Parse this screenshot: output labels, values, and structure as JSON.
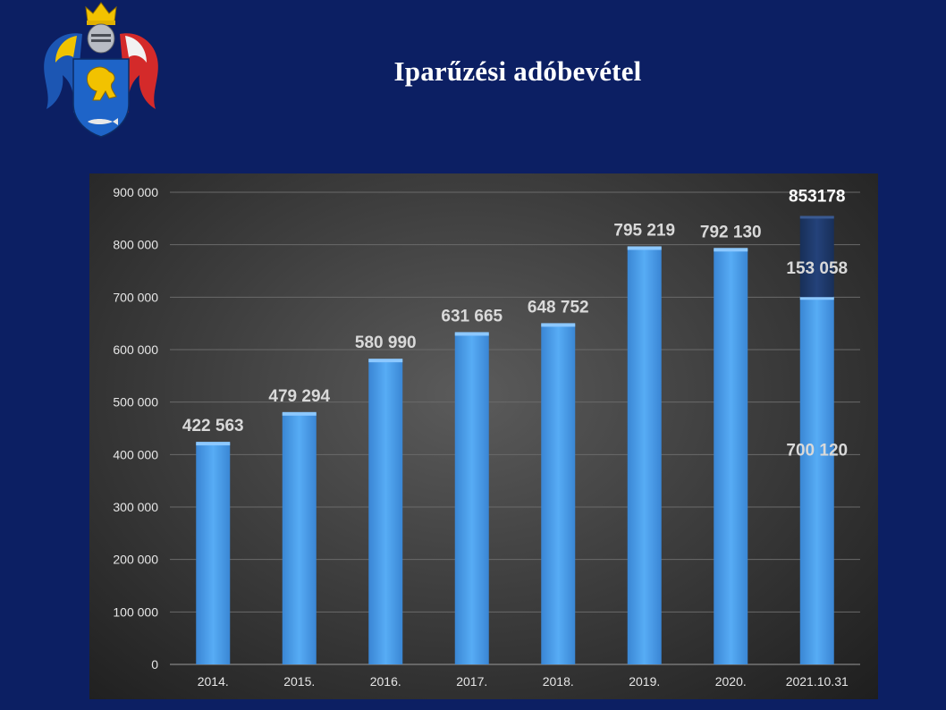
{
  "slide": {
    "title": "Iparűzési adóbevétel",
    "background_color": "#0c1f63"
  },
  "crest": {
    "icon": "coat-of-arms-icon"
  },
  "chart_data": {
    "type": "bar",
    "title": "Iparűzési adóbevétel",
    "categories": [
      "2014.",
      "2015.",
      "2016.",
      "2017.",
      "2018.",
      "2019.",
      "2020.",
      "2021.10.31"
    ],
    "series": [
      {
        "name": "base",
        "color": "#4a9eea",
        "values": [
          422563,
          479294,
          580990,
          631665,
          648752,
          795219,
          792130,
          700120
        ],
        "labels": [
          "422 563",
          "479 294",
          "580 990",
          "631 665",
          "648 752",
          "795 219",
          "792 130",
          "700 120"
        ]
      },
      {
        "name": "extra",
        "color": "#1f3a6a",
        "values": [
          null,
          null,
          null,
          null,
          null,
          null,
          null,
          153058
        ],
        "labels": [
          "",
          "",
          "",
          "",
          "",
          "",
          "",
          "153 058"
        ]
      }
    ],
    "total_label": {
      "category": "2021.10.31",
      "value": 853178,
      "text": "853178"
    },
    "y_ticks": [
      0,
      100000,
      200000,
      300000,
      400000,
      500000,
      600000,
      700000,
      800000,
      900000
    ],
    "y_tick_labels": [
      "0",
      "100 000",
      "200 000",
      "300 000",
      "400 000",
      "500 000",
      "600 000",
      "700 000",
      "800 000",
      "900 000"
    ],
    "ylim": [
      0,
      900000
    ],
    "grid": true,
    "legend": "none",
    "xlabel": "",
    "ylabel": ""
  }
}
